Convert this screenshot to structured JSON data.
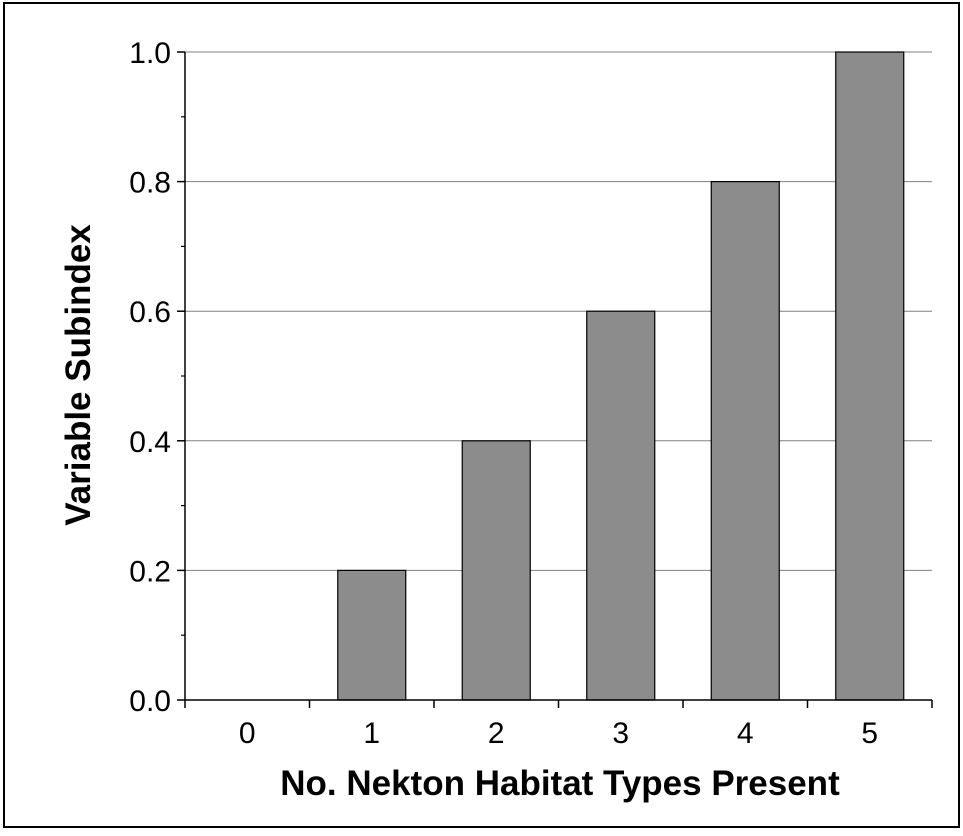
{
  "chart_data": {
    "type": "bar",
    "title": "",
    "xlabel": "No. Nekton Habitat Types Present",
    "ylabel": "Variable Subindex",
    "categories": [
      "0",
      "1",
      "2",
      "3",
      "4",
      "5"
    ],
    "values": [
      0.0,
      0.2,
      0.4,
      0.6,
      0.8,
      1.0
    ],
    "ylim": [
      0.0,
      1.0
    ],
    "yticks": [
      "0.0",
      "0.2",
      "0.4",
      "0.6",
      "0.8",
      "1.0"
    ],
    "grid": "horizontal major gridlines",
    "legend": "none",
    "colors": {
      "bar_fill": "#8c8c8c",
      "bar_stroke": "#000000",
      "gridline": "#808080",
      "axis": "#000000"
    }
  }
}
